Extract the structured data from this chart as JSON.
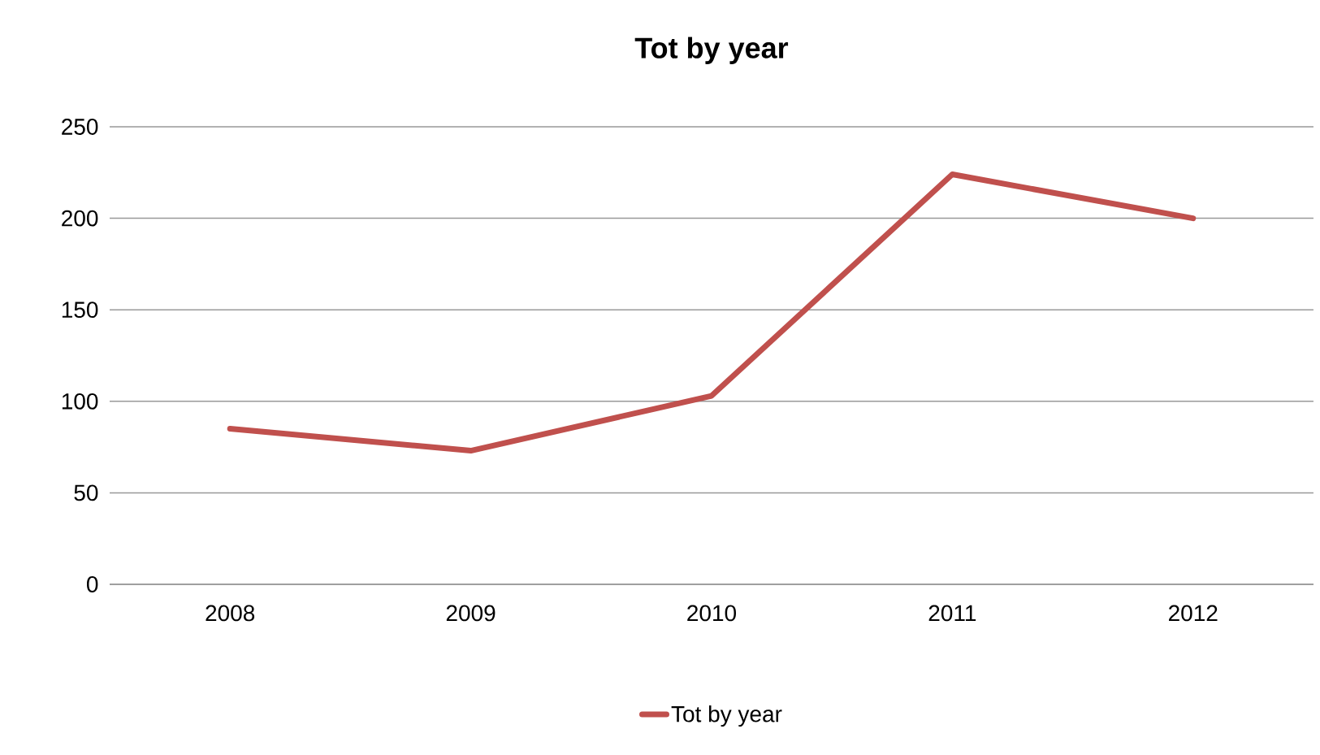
{
  "chart_data": {
    "type": "line",
    "title": "Tot by year",
    "categories": [
      "2008",
      "2009",
      "2010",
      "2011",
      "2012"
    ],
    "series": [
      {
        "name": "Tot by year",
        "color": "#c0504d",
        "values": [
          85,
          73,
          103,
          224,
          200
        ]
      }
    ],
    "ylim": [
      0,
      250
    ],
    "yticks": [
      0,
      50,
      100,
      150,
      200,
      250
    ],
    "grid": "y",
    "legend": "bottom",
    "marker": "none",
    "line_style": "solid"
  }
}
